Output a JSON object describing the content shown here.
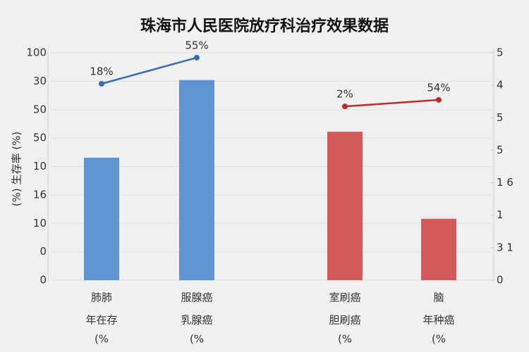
{
  "chart_data": {
    "type": "bar",
    "title": "珠海市人民医院放疗科治疗效果数据",
    "y_label": "(%) 生存率 (%)",
    "categories": [
      "肺肺",
      "服腺癌",
      "室刷癌",
      "脑"
    ],
    "sublabels": [
      "年在存",
      "乳腺癌",
      "胆刷癌",
      "年种癌"
    ],
    "units": [
      "(%",
      "(%",
      "(%",
      "(%"
    ],
    "ylim": [
      0,
      8
    ],
    "yticks": [
      {
        "value": 0,
        "label": "0"
      },
      {
        "value": 1,
        "label": "0"
      },
      {
        "value": 2,
        "label": "10"
      },
      {
        "value": 3,
        "label": "16"
      },
      {
        "value": 4,
        "label": "10"
      },
      {
        "value": 5,
        "label": "50"
      },
      {
        "value": 6,
        "label": "50"
      },
      {
        "value": 7,
        "label": "30"
      },
      {
        "value": 8,
        "label": "100"
      }
    ],
    "y2lim": [
      0,
      7
    ],
    "y2ticks": [
      0,
      {
        "value": 1,
        "label": "3 1"
      },
      {
        "value": 2,
        "label": "1"
      },
      {
        "value": 3,
        "label": "1 6"
      },
      {
        "value": 4,
        "label": "5"
      },
      {
        "value": 5,
        "label": "5"
      },
      {
        "value": 6,
        "label": "4"
      },
      {
        "value": 7,
        "label": "5"
      }
    ],
    "grid": true,
    "series": [
      {
        "color": "#5f93d3",
        "values": [
          4.31,
          7.04,
          null,
          null
        ]
      },
      {
        "color": "#d25a58",
        "axis": "y2",
        "values": [
          null,
          null,
          4.57,
          1.89
        ]
      }
    ],
    "lines": [
      {
        "color": "#3d6cb0",
        "values": [
          6.91,
          7.83,
          null,
          null
        ],
        "labels": [
          "18%",
          "55%",
          null,
          null
        ]
      },
      {
        "color": "#c02a2a",
        "axis": "y2",
        "values": [
          null,
          null,
          5.35,
          5.55
        ],
        "labels": [
          null,
          null,
          "2%",
          "54%"
        ]
      }
    ]
  }
}
